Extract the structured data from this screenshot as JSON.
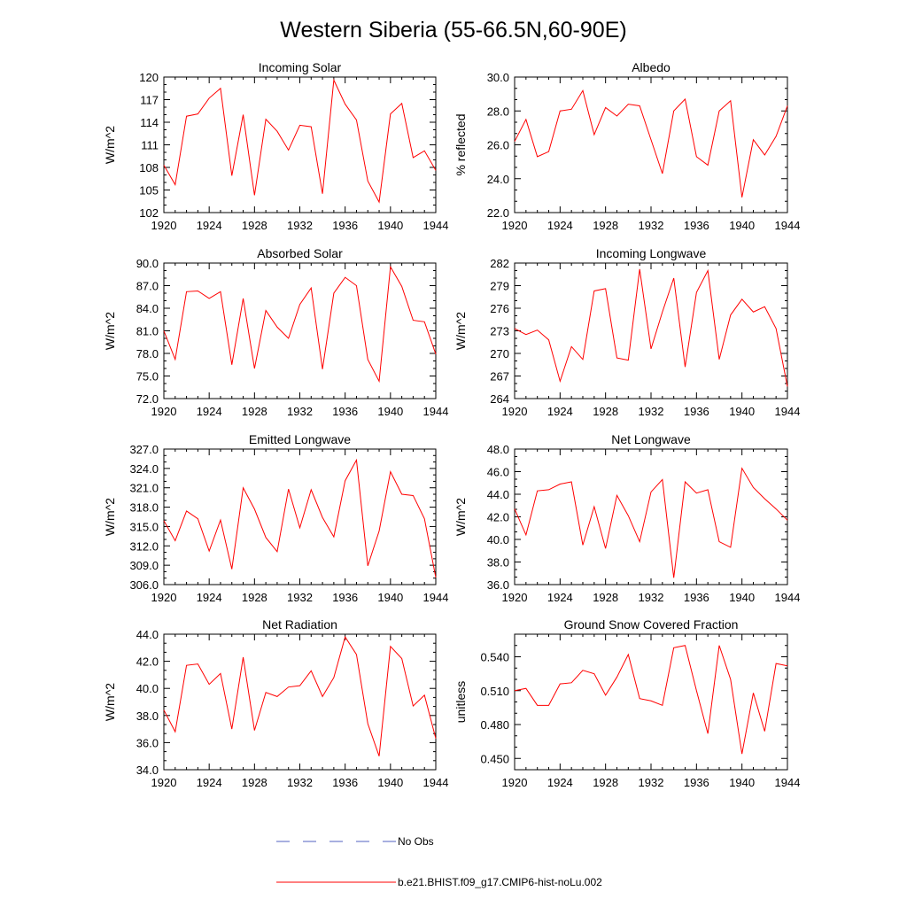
{
  "figure": {
    "title": "Western Siberia (55-66.5N,60-90E)",
    "legend": [
      {
        "label": "No Obs",
        "color": "#5060c0",
        "style": "dashed"
      },
      {
        "label": "b.e21.BHIST.f09_g17.CMIP6-hist-noLu.002",
        "color": "#ff0000",
        "style": "solid"
      }
    ]
  },
  "chart_data": [
    {
      "type": "line",
      "title": "Incoming Solar",
      "xlabel": "",
      "ylabel": "W/m^2",
      "xlim": [
        1920,
        1944
      ],
      "ylim": [
        102,
        120
      ],
      "xticks": [
        1920,
        1924,
        1928,
        1932,
        1936,
        1940,
        1944
      ],
      "yticks": [
        102,
        105,
        108,
        111,
        114,
        117,
        120
      ],
      "ydecimals": 0,
      "series": [
        {
          "name": "b.e21.BHIST.f09_g17.CMIP6-hist-noLu.002",
          "color": "#ff0000",
          "x": [
            1920,
            1921,
            1922,
            1923,
            1924,
            1925,
            1926,
            1927,
            1928,
            1929,
            1930,
            1931,
            1932,
            1933,
            1934,
            1935,
            1936,
            1937,
            1938,
            1939,
            1940,
            1941,
            1942,
            1943,
            1944
          ],
          "y": [
            108.3,
            105.7,
            114.8,
            115.1,
            117.2,
            118.5,
            106.9,
            115.0,
            104.3,
            114.4,
            112.8,
            110.3,
            113.6,
            113.4,
            104.5,
            119.6,
            116.4,
            114.3,
            106.2,
            103.4,
            115.1,
            116.5,
            109.3,
            110.2,
            107.6
          ]
        }
      ]
    },
    {
      "type": "line",
      "title": "Albedo",
      "xlabel": "",
      "ylabel": "% reflected",
      "xlim": [
        1920,
        1944
      ],
      "ylim": [
        22,
        30
      ],
      "xticks": [
        1920,
        1924,
        1928,
        1932,
        1936,
        1940,
        1944
      ],
      "yticks": [
        22,
        24,
        26,
        28,
        30
      ],
      "ydecimals": 1,
      "series": [
        {
          "name": "b.e21.BHIST.f09_g17.CMIP6-hist-noLu.002",
          "color": "#ff0000",
          "x": [
            1920,
            1921,
            1922,
            1923,
            1924,
            1925,
            1926,
            1927,
            1928,
            1929,
            1930,
            1931,
            1932,
            1933,
            1934,
            1935,
            1936,
            1937,
            1938,
            1939,
            1940,
            1941,
            1942,
            1943,
            1944
          ],
          "y": [
            26.2,
            27.5,
            25.3,
            25.6,
            28.0,
            28.1,
            29.2,
            26.6,
            28.2,
            27.7,
            28.4,
            28.3,
            26.3,
            24.3,
            28.0,
            28.7,
            25.3,
            24.8,
            28.0,
            28.6,
            22.9,
            26.3,
            25.4,
            26.5,
            28.3
          ]
        }
      ]
    },
    {
      "type": "line",
      "title": "Absorbed Solar",
      "xlabel": "",
      "ylabel": "W/m^2",
      "xlim": [
        1920,
        1944
      ],
      "ylim": [
        72,
        90
      ],
      "xticks": [
        1920,
        1924,
        1928,
        1932,
        1936,
        1940,
        1944
      ],
      "yticks": [
        72,
        75,
        78,
        81,
        84,
        87,
        90
      ],
      "ydecimals": 1,
      "series": [
        {
          "name": "b.e21.BHIST.f09_g17.CMIP6-hist-noLu.002",
          "color": "#ff0000",
          "x": [
            1920,
            1921,
            1922,
            1923,
            1924,
            1925,
            1926,
            1927,
            1928,
            1929,
            1930,
            1931,
            1932,
            1933,
            1934,
            1935,
            1936,
            1937,
            1938,
            1939,
            1940,
            1941,
            1942,
            1943,
            1944
          ],
          "y": [
            81.0,
            77.2,
            86.2,
            86.3,
            85.3,
            86.2,
            76.5,
            85.3,
            76.0,
            83.7,
            81.5,
            80.0,
            84.5,
            86.7,
            75.9,
            86.0,
            88.1,
            87.0,
            77.2,
            74.3,
            89.5,
            86.9,
            82.4,
            82.2,
            77.9
          ]
        }
      ]
    },
    {
      "type": "line",
      "title": "Incoming Longwave",
      "xlabel": "",
      "ylabel": "W/m^2",
      "xlim": [
        1920,
        1944
      ],
      "ylim": [
        264,
        282
      ],
      "xticks": [
        1920,
        1924,
        1928,
        1932,
        1936,
        1940,
        1944
      ],
      "yticks": [
        264,
        267,
        270,
        273,
        276,
        279,
        282
      ],
      "ydecimals": 0,
      "series": [
        {
          "name": "b.e21.BHIST.f09_g17.CMIP6-hist-noLu.002",
          "color": "#ff0000",
          "x": [
            1920,
            1921,
            1922,
            1923,
            1924,
            1925,
            1926,
            1927,
            1928,
            1929,
            1930,
            1931,
            1932,
            1933,
            1934,
            1935,
            1936,
            1937,
            1938,
            1939,
            1940,
            1941,
            1942,
            1943,
            1944
          ],
          "y": [
            273.3,
            272.5,
            273.1,
            271.8,
            266.3,
            270.9,
            269.2,
            278.3,
            278.6,
            269.4,
            269.1,
            281.2,
            270.6,
            275.5,
            280.0,
            268.2,
            278.1,
            281.0,
            269.2,
            275.1,
            277.2,
            275.5,
            276.2,
            273.3,
            265.6
          ]
        }
      ]
    },
    {
      "type": "line",
      "title": "Emitted Longwave",
      "xlabel": "",
      "ylabel": "W/m^2",
      "xlim": [
        1920,
        1944
      ],
      "ylim": [
        306,
        327
      ],
      "xticks": [
        1920,
        1924,
        1928,
        1932,
        1936,
        1940,
        1944
      ],
      "yticks": [
        306,
        309,
        312,
        315,
        318,
        321,
        324,
        327
      ],
      "ydecimals": 1,
      "series": [
        {
          "name": "b.e21.BHIST.f09_g17.CMIP6-hist-noLu.002",
          "color": "#ff0000",
          "x": [
            1920,
            1921,
            1922,
            1923,
            1924,
            1925,
            1926,
            1927,
            1928,
            1929,
            1930,
            1931,
            1932,
            1933,
            1934,
            1935,
            1936,
            1937,
            1938,
            1939,
            1940,
            1941,
            1942,
            1943,
            1944
          ],
          "y": [
            315.9,
            312.8,
            317.4,
            316.2,
            311.2,
            316.0,
            308.4,
            321.0,
            317.7,
            313.3,
            311.1,
            320.8,
            314.8,
            320.7,
            316.4,
            313.4,
            322.1,
            325.3,
            308.9,
            314.3,
            323.5,
            320.0,
            319.8,
            316.2,
            307.1
          ]
        }
      ]
    },
    {
      "type": "line",
      "title": "Net Longwave",
      "xlabel": "",
      "ylabel": "W/m^2",
      "xlim": [
        1920,
        1944
      ],
      "ylim": [
        36,
        48
      ],
      "xticks": [
        1920,
        1924,
        1928,
        1932,
        1936,
        1940,
        1944
      ],
      "yticks": [
        36,
        38,
        40,
        42,
        44,
        46,
        48
      ],
      "ydecimals": 1,
      "series": [
        {
          "name": "b.e21.BHIST.f09_g17.CMIP6-hist-noLu.002",
          "color": "#ff0000",
          "x": [
            1920,
            1921,
            1922,
            1923,
            1924,
            1925,
            1926,
            1927,
            1928,
            1929,
            1930,
            1931,
            1932,
            1933,
            1934,
            1935,
            1936,
            1937,
            1938,
            1939,
            1940,
            1941,
            1942,
            1943,
            1944
          ],
          "y": [
            42.7,
            40.4,
            44.3,
            44.4,
            44.9,
            45.1,
            39.5,
            42.9,
            39.2,
            43.9,
            42.1,
            39.8,
            44.2,
            45.3,
            36.6,
            45.1,
            44.1,
            44.4,
            39.8,
            39.3,
            46.3,
            44.6,
            43.6,
            42.7,
            41.7
          ]
        }
      ]
    },
    {
      "type": "line",
      "title": "Net Radiation",
      "xlabel": "",
      "ylabel": "W/m^2",
      "xlim": [
        1920,
        1944
      ],
      "ylim": [
        34,
        44
      ],
      "xticks": [
        1920,
        1924,
        1928,
        1932,
        1936,
        1940,
        1944
      ],
      "yticks": [
        34,
        36,
        38,
        40,
        42,
        44
      ],
      "ydecimals": 1,
      "series": [
        {
          "name": "b.e21.BHIST.f09_g17.CMIP6-hist-noLu.002",
          "color": "#ff0000",
          "x": [
            1920,
            1921,
            1922,
            1923,
            1924,
            1925,
            1926,
            1927,
            1928,
            1929,
            1930,
            1931,
            1932,
            1933,
            1934,
            1935,
            1936,
            1937,
            1938,
            1939,
            1940,
            1941,
            1942,
            1943,
            1944
          ],
          "y": [
            38.4,
            36.8,
            41.7,
            41.8,
            40.3,
            41.1,
            37.0,
            42.3,
            36.9,
            39.7,
            39.4,
            40.1,
            40.2,
            41.3,
            39.4,
            40.8,
            43.8,
            42.5,
            37.4,
            35.0,
            43.1,
            42.2,
            38.7,
            39.5,
            36.3
          ]
        }
      ]
    },
    {
      "type": "line",
      "title": "Ground Snow Covered Fraction",
      "xlabel": "",
      "ylabel": "unitless",
      "xlim": [
        1920,
        1944
      ],
      "ylim": [
        0.44,
        0.56
      ],
      "xticks": [
        1920,
        1924,
        1928,
        1932,
        1936,
        1940,
        1944
      ],
      "yticks": [
        0.45,
        0.48,
        0.51,
        0.54
      ],
      "ydecimals": 3,
      "series": [
        {
          "name": "b.e21.BHIST.f09_g17.CMIP6-hist-noLu.002",
          "color": "#ff0000",
          "x": [
            1920,
            1921,
            1922,
            1923,
            1924,
            1925,
            1926,
            1927,
            1928,
            1929,
            1930,
            1931,
            1932,
            1933,
            1934,
            1935,
            1936,
            1937,
            1938,
            1939,
            1940,
            1941,
            1942,
            1943,
            1944
          ],
          "y": [
            0.51,
            0.512,
            0.497,
            0.497,
            0.516,
            0.517,
            0.528,
            0.525,
            0.506,
            0.522,
            0.542,
            0.503,
            0.501,
            0.497,
            0.548,
            0.55,
            0.51,
            0.472,
            0.55,
            0.52,
            0.454,
            0.508,
            0.474,
            0.534,
            0.532
          ]
        }
      ]
    }
  ]
}
